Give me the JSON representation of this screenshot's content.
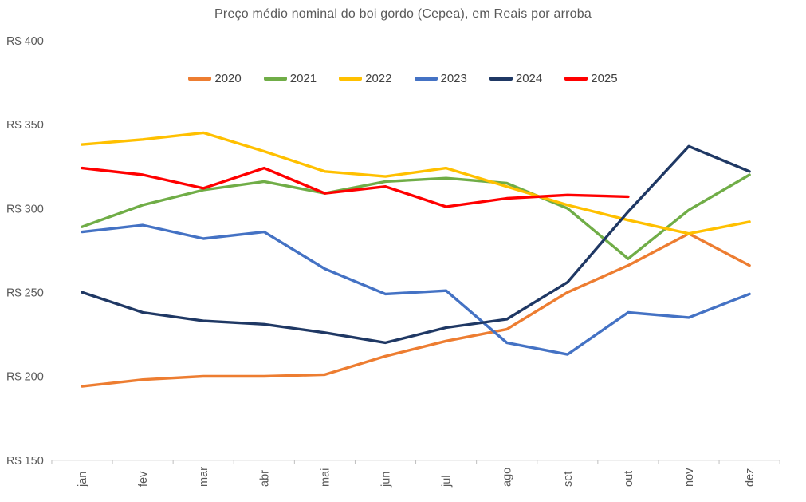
{
  "chart_data": {
    "type": "line",
    "title": "Preço médio nominal do boi gordo (Cepea), em Reais por arroba",
    "categories": [
      "jan",
      "fev",
      "mar",
      "abr",
      "mai",
      "jun",
      "jul",
      "ago",
      "set",
      "out",
      "nov",
      "dez"
    ],
    "series": [
      {
        "name": "2020",
        "color": "#ED7D31",
        "values": [
          194,
          198,
          200,
          200,
          201,
          212,
          221,
          228,
          250,
          266,
          285,
          266
        ]
      },
      {
        "name": "2021",
        "color": "#70AD47",
        "values": [
          289,
          302,
          311,
          316,
          309,
          316,
          318,
          315,
          300,
          270,
          299,
          320
        ]
      },
      {
        "name": "2022",
        "color": "#FFC000",
        "values": [
          338,
          341,
          345,
          334,
          322,
          319,
          324,
          313,
          302,
          293,
          285,
          292
        ]
      },
      {
        "name": "2023",
        "color": "#4472C4",
        "values": [
          286,
          290,
          282,
          286,
          264,
          249,
          251,
          220,
          213,
          238,
          235,
          249
        ]
      },
      {
        "name": "2024",
        "color": "#1F3864",
        "values": [
          250,
          238,
          233,
          231,
          226,
          220,
          229,
          234,
          256,
          298,
          337,
          322
        ]
      },
      {
        "name": "2025",
        "color": "#FF0000",
        "values": [
          324,
          320,
          312,
          324,
          309,
          313,
          301,
          306,
          308,
          307,
          null,
          null
        ]
      }
    ],
    "y_ticks": [
      {
        "label": "R$ 400",
        "value": 400
      },
      {
        "label": "R$ 350",
        "value": 350
      },
      {
        "label": "R$ 300",
        "value": 300
      },
      {
        "label": "R$ 250",
        "value": 250
      },
      {
        "label": "R$ 200",
        "value": 200
      },
      {
        "label": "R$ 150",
        "value": 150
      }
    ],
    "ylim": [
      150,
      400
    ],
    "grid": false,
    "legend_position": "top",
    "axis_color": "#BFBFBF"
  }
}
